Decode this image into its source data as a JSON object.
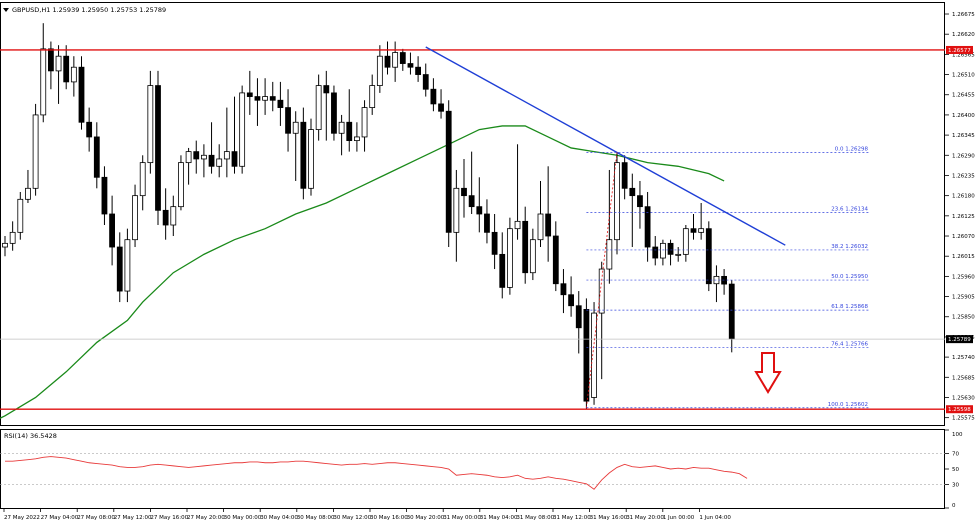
{
  "header": {
    "symbol_label": "GBPUSD,H1  1.25939 1.25950 1.25753 1.25789"
  },
  "colors": {
    "background": "#ffffff",
    "bull": "#ffffff",
    "bear": "#000000",
    "ma": "#1a8a1a",
    "trend": "#1f3fd6",
    "level": "#e01010",
    "fib": "#3344dd",
    "rsi": "#e83a3a",
    "arrow": "#e01010",
    "grid": "#000000"
  },
  "price_axis": {
    "ticks": [
      "1.26675",
      "1.26620",
      "1.26565",
      "1.26510",
      "1.26455",
      "1.26400",
      "1.26345",
      "1.26290",
      "1.26235",
      "1.26180",
      "1.26125",
      "1.26070",
      "1.26015",
      "1.25960",
      "1.25905",
      "1.25850",
      "1.25795",
      "1.25740",
      "1.25685",
      "1.25630",
      "1.25575"
    ],
    "resistance_label": "1.26577",
    "support_label": "1.25598",
    "current_label": "1.25789"
  },
  "time_axis": {
    "labels": [
      "27 May 2022",
      "27 May 04:00",
      "27 May 08:00",
      "27 May 12:00",
      "27 May 16:00",
      "27 May 20:00",
      "30 May 00:00",
      "30 May 04:00",
      "30 May 08:00",
      "30 May 12:00",
      "30 May 16:00",
      "30 May 20:00",
      "31 May 00:00",
      "31 May 04:00",
      "31 May 08:00",
      "31 May 12:00",
      "31 May 16:00",
      "31 May 20:00",
      "1 Jun 00:00",
      "1 Jun 04:00"
    ]
  },
  "fib_levels": [
    {
      "label": "0.0  1.26298",
      "price": 1.26298
    },
    {
      "label": "23.6  1.26134",
      "price": 1.26134
    },
    {
      "label": "38.2  1.26032",
      "price": 1.26032
    },
    {
      "label": "50.0  1.25950",
      "price": 1.2595
    },
    {
      "label": "61.8  1.25868",
      "price": 1.25868
    },
    {
      "label": "76.4  1.25766",
      "price": 1.25766
    },
    {
      "label": "100.0  1.25602",
      "price": 1.25602
    }
  ],
  "rsi_panel": {
    "label": "RSI(14) 36.5428",
    "ticks": [
      "100",
      "70",
      "50",
      "30",
      "0"
    ]
  },
  "chart_data": {
    "type": "candlestick",
    "title": "GBPUSD,H1",
    "ylim": [
      1.25555,
      1.26705
    ],
    "resistance": 1.26577,
    "support": 1.25598,
    "last_price": 1.25789,
    "trendline": [
      {
        "bar": 0,
        "price": 1.26585
      },
      {
        "bar": 52,
        "price": 1.26045
      }
    ],
    "ma_series": [
      [
        -4,
        1.2554
      ],
      [
        0,
        1.2558
      ],
      [
        4,
        1.2563
      ],
      [
        8,
        1.257
      ],
      [
        12,
        1.2578
      ],
      [
        16,
        1.2584
      ],
      [
        18,
        1.2589
      ],
      [
        22,
        1.2597
      ],
      [
        26,
        1.2602
      ],
      [
        30,
        1.2606
      ],
      [
        34,
        1.2609
      ],
      [
        38,
        1.2613
      ],
      [
        42,
        1.2616
      ],
      [
        46,
        1.262
      ],
      [
        50,
        1.2624
      ],
      [
        54,
        1.2628
      ],
      [
        58,
        1.2632
      ],
      [
        62,
        1.2636
      ],
      [
        65,
        1.2637
      ],
      [
        68,
        1.2637
      ],
      [
        71,
        1.2634
      ],
      [
        74,
        1.2631
      ],
      [
        77,
        1.263
      ],
      [
        80,
        1.2629
      ],
      [
        84,
        1.2627
      ],
      [
        88,
        1.2626
      ],
      [
        92,
        1.2624
      ],
      [
        94,
        1.2622
      ]
    ],
    "candles": [
      {
        "o": 1.2604,
        "h": 1.2607,
        "l": 1.26015,
        "c": 1.2605
      },
      {
        "o": 1.2605,
        "h": 1.2611,
        "l": 1.2603,
        "c": 1.2608
      },
      {
        "o": 1.2608,
        "h": 1.2619,
        "l": 1.2606,
        "c": 1.2617
      },
      {
        "o": 1.2617,
        "h": 1.2625,
        "l": 1.2616,
        "c": 1.262
      },
      {
        "o": 1.262,
        "h": 1.2643,
        "l": 1.2618,
        "c": 1.264
      },
      {
        "o": 1.264,
        "h": 1.2665,
        "l": 1.2638,
        "c": 1.2658
      },
      {
        "o": 1.2658,
        "h": 1.266,
        "l": 1.2647,
        "c": 1.2652
      },
      {
        "o": 1.2652,
        "h": 1.2659,
        "l": 1.2643,
        "c": 1.2656
      },
      {
        "o": 1.2656,
        "h": 1.2659,
        "l": 1.2647,
        "c": 1.2649
      },
      {
        "o": 1.2649,
        "h": 1.2656,
        "l": 1.2645,
        "c": 1.2653
      },
      {
        "o": 1.2653,
        "h": 1.2656,
        "l": 1.2636,
        "c": 1.2638
      },
      {
        "o": 1.2638,
        "h": 1.2642,
        "l": 1.263,
        "c": 1.2634
      },
      {
        "o": 1.2634,
        "h": 1.2638,
        "l": 1.262,
        "c": 1.2623
      },
      {
        "o": 1.2623,
        "h": 1.2626,
        "l": 1.261,
        "c": 1.2613
      },
      {
        "o": 1.2613,
        "h": 1.2618,
        "l": 1.2599,
        "c": 1.2604
      },
      {
        "o": 1.2604,
        "h": 1.2608,
        "l": 1.2589,
        "c": 1.2592
      },
      {
        "o": 1.2592,
        "h": 1.2609,
        "l": 1.2589,
        "c": 1.2606
      },
      {
        "o": 1.2606,
        "h": 1.2621,
        "l": 1.2604,
        "c": 1.2618
      },
      {
        "o": 1.2618,
        "h": 1.2629,
        "l": 1.2614,
        "c": 1.2627
      },
      {
        "o": 1.2627,
        "h": 1.2652,
        "l": 1.2624,
        "c": 1.2648
      },
      {
        "o": 1.2648,
        "h": 1.2652,
        "l": 1.261,
        "c": 1.2614
      },
      {
        "o": 1.2614,
        "h": 1.262,
        "l": 1.2606,
        "c": 1.261
      },
      {
        "o": 1.261,
        "h": 1.2618,
        "l": 1.2607,
        "c": 1.2615
      },
      {
        "o": 1.2615,
        "h": 1.2629,
        "l": 1.2614,
        "c": 1.2627
      },
      {
        "o": 1.2627,
        "h": 1.2631,
        "l": 1.2621,
        "c": 1.263
      },
      {
        "o": 1.263,
        "h": 1.2633,
        "l": 1.2624,
        "c": 1.2628
      },
      {
        "o": 1.2628,
        "h": 1.2632,
        "l": 1.2623,
        "c": 1.2629
      },
      {
        "o": 1.2629,
        "h": 1.2638,
        "l": 1.2624,
        "c": 1.2626
      },
      {
        "o": 1.2626,
        "h": 1.2632,
        "l": 1.2623,
        "c": 1.2628
      },
      {
        "o": 1.2628,
        "h": 1.2642,
        "l": 1.2623,
        "c": 1.263
      },
      {
        "o": 1.263,
        "h": 1.2645,
        "l": 1.2624,
        "c": 1.2626
      },
      {
        "o": 1.2626,
        "h": 1.2648,
        "l": 1.2624,
        "c": 1.2646
      },
      {
        "o": 1.2646,
        "h": 1.2652,
        "l": 1.264,
        "c": 1.2645
      },
      {
        "o": 1.2645,
        "h": 1.265,
        "l": 1.2637,
        "c": 1.2644
      },
      {
        "o": 1.2644,
        "h": 1.265,
        "l": 1.264,
        "c": 1.2645
      },
      {
        "o": 1.2645,
        "h": 1.2649,
        "l": 1.2641,
        "c": 1.2644
      },
      {
        "o": 1.2644,
        "h": 1.2649,
        "l": 1.2637,
        "c": 1.2642
      },
      {
        "o": 1.2642,
        "h": 1.2647,
        "l": 1.263,
        "c": 1.2635
      },
      {
        "o": 1.2635,
        "h": 1.2641,
        "l": 1.2622,
        "c": 1.2638
      },
      {
        "o": 1.2638,
        "h": 1.2642,
        "l": 1.2617,
        "c": 1.262
      },
      {
        "o": 1.262,
        "h": 1.2639,
        "l": 1.2618,
        "c": 1.2636
      },
      {
        "o": 1.2636,
        "h": 1.2651,
        "l": 1.2633,
        "c": 1.2648
      },
      {
        "o": 1.2648,
        "h": 1.2652,
        "l": 1.2633,
        "c": 1.2646
      },
      {
        "o": 1.2646,
        "h": 1.2648,
        "l": 1.2633,
        "c": 1.2635
      },
      {
        "o": 1.2635,
        "h": 1.264,
        "l": 1.2629,
        "c": 1.2638
      },
      {
        "o": 1.2638,
        "h": 1.2647,
        "l": 1.263,
        "c": 1.2633
      },
      {
        "o": 1.2633,
        "h": 1.2638,
        "l": 1.263,
        "c": 1.2634
      },
      {
        "o": 1.2634,
        "h": 1.2644,
        "l": 1.263,
        "c": 1.2642
      },
      {
        "o": 1.2642,
        "h": 1.2651,
        "l": 1.264,
        "c": 1.2648
      },
      {
        "o": 1.2648,
        "h": 1.2659,
        "l": 1.2646,
        "c": 1.2656
      },
      {
        "o": 1.2656,
        "h": 1.266,
        "l": 1.2651,
        "c": 1.2653
      },
      {
        "o": 1.2653,
        "h": 1.266,
        "l": 1.2649,
        "c": 1.2657
      },
      {
        "o": 1.2657,
        "h": 1.2658,
        "l": 1.2652,
        "c": 1.2654
      },
      {
        "o": 1.2654,
        "h": 1.2657,
        "l": 1.2651,
        "c": 1.2653
      },
      {
        "o": 1.2653,
        "h": 1.2656,
        "l": 1.2649,
        "c": 1.2651
      },
      {
        "o": 1.2651,
        "h": 1.2654,
        "l": 1.2645,
        "c": 1.2647
      },
      {
        "o": 1.2647,
        "h": 1.265,
        "l": 1.2641,
        "c": 1.2643
      },
      {
        "o": 1.2643,
        "h": 1.2647,
        "l": 1.2639,
        "c": 1.2641
      },
      {
        "o": 1.2641,
        "h": 1.2644,
        "l": 1.2604,
        "c": 1.2608
      },
      {
        "o": 1.2608,
        "h": 1.2625,
        "l": 1.26,
        "c": 1.262
      },
      {
        "o": 1.262,
        "h": 1.2628,
        "l": 1.2612,
        "c": 1.2618
      },
      {
        "o": 1.2618,
        "h": 1.263,
        "l": 1.2613,
        "c": 1.2615
      },
      {
        "o": 1.2615,
        "h": 1.2623,
        "l": 1.2608,
        "c": 1.2613
      },
      {
        "o": 1.2613,
        "h": 1.2617,
        "l": 1.2605,
        "c": 1.2608
      },
      {
        "o": 1.2608,
        "h": 1.2613,
        "l": 1.2598,
        "c": 1.2602
      },
      {
        "o": 1.2602,
        "h": 1.2608,
        "l": 1.259,
        "c": 1.2593
      },
      {
        "o": 1.2593,
        "h": 1.2612,
        "l": 1.2591,
        "c": 1.2609
      },
      {
        "o": 1.2609,
        "h": 1.2632,
        "l": 1.2606,
        "c": 1.2611
      },
      {
        "o": 1.2611,
        "h": 1.2615,
        "l": 1.2594,
        "c": 1.2597
      },
      {
        "o": 1.2597,
        "h": 1.2609,
        "l": 1.2595,
        "c": 1.2606
      },
      {
        "o": 1.2606,
        "h": 1.2622,
        "l": 1.2604,
        "c": 1.2613
      },
      {
        "o": 1.2613,
        "h": 1.2626,
        "l": 1.26,
        "c": 1.2607
      },
      {
        "o": 1.2607,
        "h": 1.2611,
        "l": 1.2592,
        "c": 1.2594
      },
      {
        "o": 1.2594,
        "h": 1.2598,
        "l": 1.2586,
        "c": 1.2591
      },
      {
        "o": 1.2591,
        "h": 1.2596,
        "l": 1.2585,
        "c": 1.2588
      },
      {
        "o": 1.2588,
        "h": 1.2592,
        "l": 1.2575,
        "c": 1.2582
      },
      {
        "o": 1.2587,
        "h": 1.259,
        "l": 1.256,
        "c": 1.2562
      },
      {
        "o": 1.2563,
        "h": 1.2589,
        "l": 1.2561,
        "c": 1.2586
      },
      {
        "o": 1.2586,
        "h": 1.26,
        "l": 1.2568,
        "c": 1.2598
      },
      {
        "o": 1.2598,
        "h": 1.2625,
        "l": 1.2594,
        "c": 1.2606
      },
      {
        "o": 1.2606,
        "h": 1.26298,
        "l": 1.2602,
        "c": 1.2627
      },
      {
        "o": 1.2627,
        "h": 1.2629,
        "l": 1.2617,
        "c": 1.262
      },
      {
        "o": 1.262,
        "h": 1.2624,
        "l": 1.2604,
        "c": 1.2618
      },
      {
        "o": 1.2618,
        "h": 1.2622,
        "l": 1.2609,
        "c": 1.2615
      },
      {
        "o": 1.2615,
        "h": 1.2619,
        "l": 1.26,
        "c": 1.2604
      },
      {
        "o": 1.2604,
        "h": 1.2607,
        "l": 1.2599,
        "c": 1.2601
      },
      {
        "o": 1.2601,
        "h": 1.2606,
        "l": 1.2599,
        "c": 1.2605
      },
      {
        "o": 1.2605,
        "h": 1.2606,
        "l": 1.2599,
        "c": 1.2602
      },
      {
        "o": 1.2602,
        "h": 1.2604,
        "l": 1.26,
        "c": 1.2602
      },
      {
        "o": 1.2602,
        "h": 1.261,
        "l": 1.26,
        "c": 1.2609
      },
      {
        "o": 1.2609,
        "h": 1.2613,
        "l": 1.2606,
        "c": 1.2608
      },
      {
        "o": 1.2608,
        "h": 1.2616,
        "l": 1.2606,
        "c": 1.2609
      },
      {
        "o": 1.2609,
        "h": 1.2611,
        "l": 1.2592,
        "c": 1.2594
      },
      {
        "o": 1.2594,
        "h": 1.2599,
        "l": 1.2589,
        "c": 1.2596
      },
      {
        "o": 1.2596,
        "h": 1.2598,
        "l": 1.2591,
        "c": 1.25939
      },
      {
        "o": 1.25939,
        "h": 1.2595,
        "l": 1.25753,
        "c": 1.25789
      }
    ],
    "rsi_values": [
      60,
      60,
      61,
      62,
      63,
      65,
      66,
      65,
      64,
      62,
      60,
      58,
      57,
      56,
      55,
      53,
      52,
      52,
      53,
      55,
      56,
      55,
      54,
      53,
      52,
      53,
      54,
      55,
      56,
      57,
      58,
      58,
      59,
      59,
      58,
      58,
      59,
      59,
      60,
      60,
      59,
      58,
      57,
      56,
      55,
      56,
      56,
      57,
      56,
      57,
      58,
      58,
      57,
      56,
      55,
      54,
      53,
      52,
      50,
      42,
      43,
      44,
      43,
      42,
      40,
      39,
      40,
      42,
      38,
      37,
      38,
      40,
      38,
      37,
      35,
      33,
      31,
      24,
      36,
      45,
      52,
      56,
      53,
      52,
      53,
      54,
      52,
      50,
      51,
      50,
      52,
      51,
      51,
      49,
      47,
      46,
      44,
      38
    ]
  }
}
